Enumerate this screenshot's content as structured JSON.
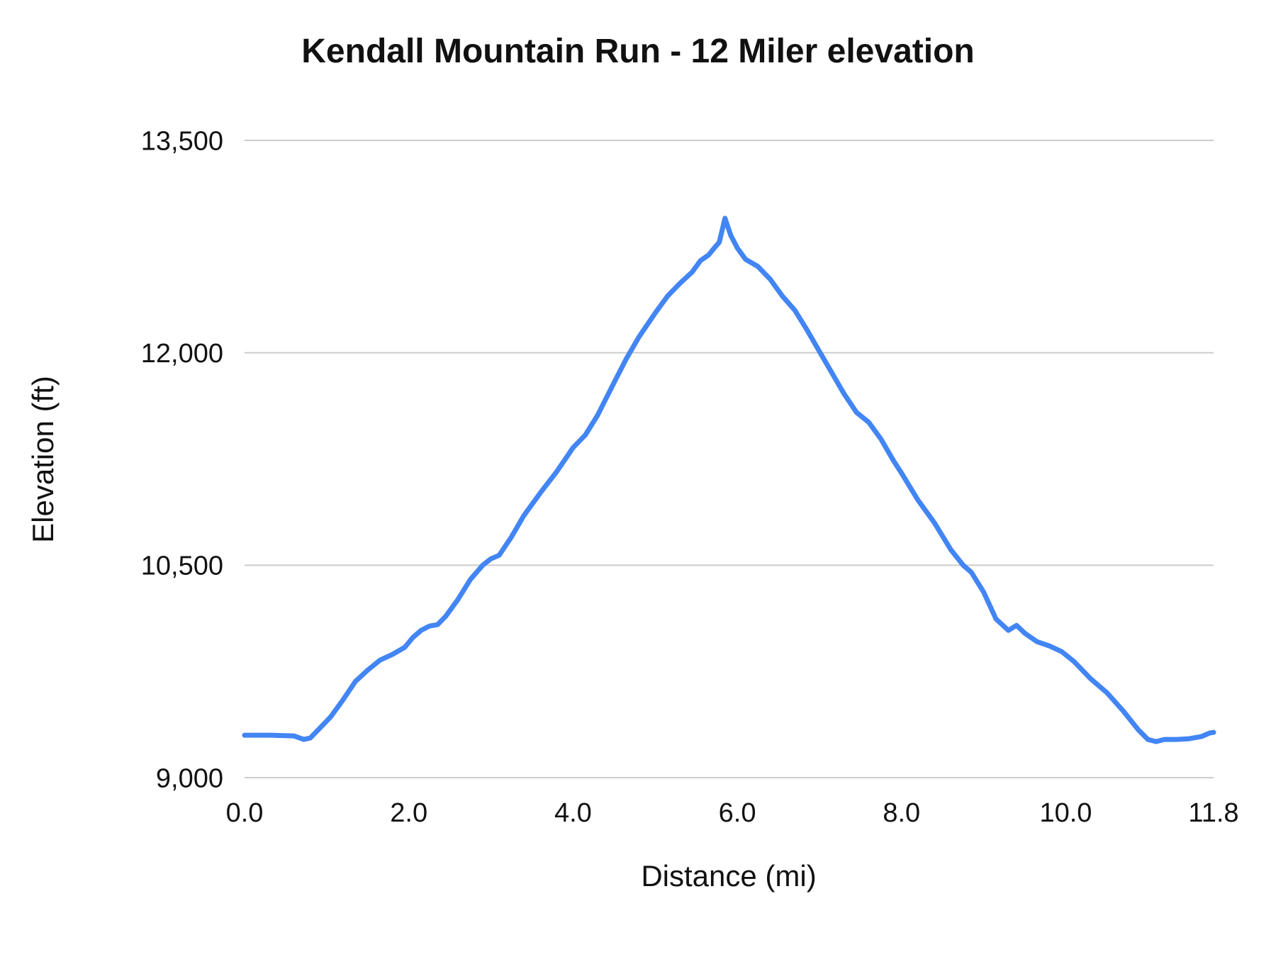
{
  "chart_data": {
    "type": "line",
    "title": "Kendall Mountain Run - 12 Miler elevation",
    "xlabel": "Distance (mi)",
    "ylabel": "Elevation (ft)",
    "xlim": [
      0,
      11.8
    ],
    "ylim": [
      9000,
      13500
    ],
    "grid": "horizontal",
    "legend": "none",
    "background": "#ffffff",
    "line_color": "#4285f4",
    "line_width": 7,
    "gridline_color": "#cccccc",
    "x_ticks": [
      {
        "value": 0.0,
        "label": "0.0"
      },
      {
        "value": 2.0,
        "label": "2.0"
      },
      {
        "value": 4.0,
        "label": "4.0"
      },
      {
        "value": 6.0,
        "label": "6.0"
      },
      {
        "value": 8.0,
        "label": "8.0"
      },
      {
        "value": 10.0,
        "label": "10.0"
      },
      {
        "value": 11.8,
        "label": "11.8"
      }
    ],
    "y_ticks": [
      {
        "value": 9000,
        "label": "9,000"
      },
      {
        "value": 10500,
        "label": "10,500"
      },
      {
        "value": 12000,
        "label": "12,000"
      },
      {
        "value": 13500,
        "label": "13,500"
      }
    ],
    "series": [
      {
        "name": "Elevation",
        "points": [
          [
            0.0,
            9300
          ],
          [
            0.3,
            9300
          ],
          [
            0.6,
            9295
          ],
          [
            0.72,
            9270
          ],
          [
            0.8,
            9280
          ],
          [
            0.95,
            9370
          ],
          [
            1.05,
            9430
          ],
          [
            1.2,
            9550
          ],
          [
            1.35,
            9680
          ],
          [
            1.5,
            9760
          ],
          [
            1.65,
            9830
          ],
          [
            1.8,
            9870
          ],
          [
            1.95,
            9920
          ],
          [
            2.05,
            9990
          ],
          [
            2.15,
            10040
          ],
          [
            2.25,
            10070
          ],
          [
            2.35,
            10080
          ],
          [
            2.45,
            10140
          ],
          [
            2.6,
            10260
          ],
          [
            2.75,
            10400
          ],
          [
            2.9,
            10500
          ],
          [
            3.0,
            10545
          ],
          [
            3.1,
            10570
          ],
          [
            3.25,
            10700
          ],
          [
            3.4,
            10850
          ],
          [
            3.6,
            11010
          ],
          [
            3.8,
            11160
          ],
          [
            4.0,
            11330
          ],
          [
            4.15,
            11420
          ],
          [
            4.3,
            11560
          ],
          [
            4.5,
            11790
          ],
          [
            4.65,
            11960
          ],
          [
            4.8,
            12110
          ],
          [
            5.0,
            12280
          ],
          [
            5.15,
            12400
          ],
          [
            5.3,
            12490
          ],
          [
            5.45,
            12570
          ],
          [
            5.55,
            12650
          ],
          [
            5.65,
            12690
          ],
          [
            5.72,
            12740
          ],
          [
            5.78,
            12780
          ],
          [
            5.85,
            12950
          ],
          [
            5.92,
            12830
          ],
          [
            6.0,
            12740
          ],
          [
            6.1,
            12660
          ],
          [
            6.25,
            12610
          ],
          [
            6.4,
            12520
          ],
          [
            6.55,
            12400
          ],
          [
            6.7,
            12300
          ],
          [
            6.85,
            12160
          ],
          [
            7.0,
            12010
          ],
          [
            7.15,
            11860
          ],
          [
            7.3,
            11710
          ],
          [
            7.45,
            11580
          ],
          [
            7.6,
            11510
          ],
          [
            7.75,
            11390
          ],
          [
            7.9,
            11240
          ],
          [
            8.0,
            11150
          ],
          [
            8.2,
            10960
          ],
          [
            8.4,
            10800
          ],
          [
            8.6,
            10610
          ],
          [
            8.75,
            10500
          ],
          [
            8.85,
            10450
          ],
          [
            9.0,
            10310
          ],
          [
            9.15,
            10120
          ],
          [
            9.3,
            10040
          ],
          [
            9.4,
            10075
          ],
          [
            9.5,
            10020
          ],
          [
            9.65,
            9960
          ],
          [
            9.8,
            9930
          ],
          [
            9.95,
            9890
          ],
          [
            10.1,
            9820
          ],
          [
            10.3,
            9700
          ],
          [
            10.5,
            9600
          ],
          [
            10.7,
            9470
          ],
          [
            10.88,
            9340
          ],
          [
            11.0,
            9270
          ],
          [
            11.1,
            9255
          ],
          [
            11.2,
            9270
          ],
          [
            11.35,
            9270
          ],
          [
            11.5,
            9275
          ],
          [
            11.65,
            9290
          ],
          [
            11.75,
            9315
          ],
          [
            11.8,
            9320
          ]
        ]
      }
    ]
  }
}
